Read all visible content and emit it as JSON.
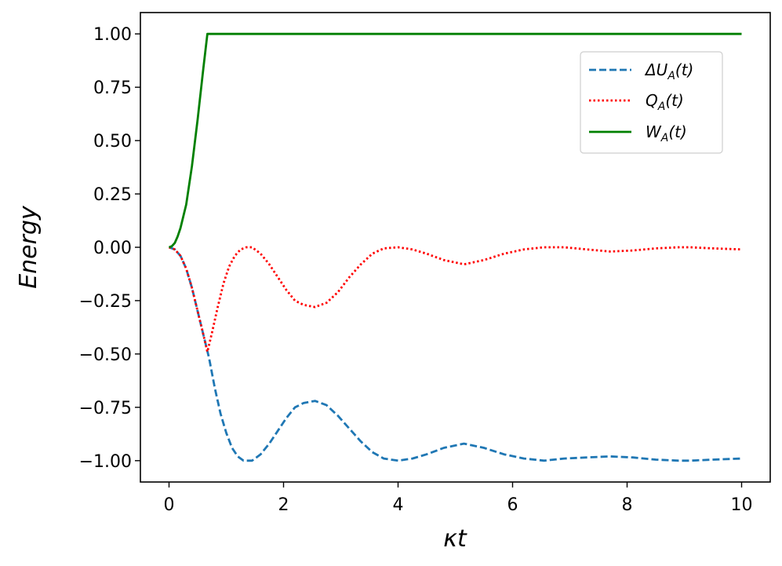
{
  "chart_data": {
    "type": "line",
    "xlabel": "κt",
    "ylabel": "Energy",
    "xlim": [
      -0.5,
      10.5
    ],
    "ylim": [
      -1.1,
      1.1
    ],
    "xticks": [
      0,
      2,
      4,
      6,
      8,
      10
    ],
    "xtick_labels": [
      "0",
      "2",
      "4",
      "6",
      "8",
      "10"
    ],
    "yticks": [
      1.0,
      0.75,
      0.5,
      0.25,
      0.0,
      -0.25,
      -0.5,
      -0.75,
      -1.0
    ],
    "ytick_labels": [
      "1.00",
      "0.75",
      "0.50",
      "0.25",
      "0.00",
      "−0.25",
      "−0.50",
      "−0.75",
      "−1.00"
    ],
    "grid": false,
    "legend_position": "top-right",
    "series": [
      {
        "name": "ΔU_A(t)",
        "legend_main": "ΔU",
        "legend_sub": "A",
        "legend_tail": "(t)",
        "color": "#1f77b4",
        "style": "dashed",
        "x": [
          0,
          0.1,
          0.2,
          0.3,
          0.4,
          0.5,
          0.6,
          0.7,
          0.8,
          0.9,
          1.0,
          1.1,
          1.2,
          1.3,
          1.45,
          1.6,
          1.75,
          1.9,
          2.05,
          2.2,
          2.35,
          2.55,
          2.75,
          2.95,
          3.15,
          3.35,
          3.55,
          3.75,
          4.0,
          4.25,
          4.5,
          4.8,
          5.15,
          5.5,
          5.85,
          6.2,
          6.55,
          6.9,
          7.3,
          7.7,
          8.1,
          8.5,
          8.9,
          9.1,
          9.5,
          10.0
        ],
        "y": [
          0,
          -0.01,
          -0.04,
          -0.1,
          -0.19,
          -0.3,
          -0.41,
          -0.52,
          -0.66,
          -0.78,
          -0.87,
          -0.94,
          -0.98,
          -1.0,
          -1.0,
          -0.97,
          -0.92,
          -0.86,
          -0.8,
          -0.75,
          -0.73,
          -0.72,
          -0.74,
          -0.79,
          -0.85,
          -0.91,
          -0.96,
          -0.99,
          -1.0,
          -0.99,
          -0.97,
          -0.94,
          -0.92,
          -0.94,
          -0.97,
          -0.99,
          -1.0,
          -0.99,
          -0.985,
          -0.98,
          -0.985,
          -0.995,
          -1.0,
          -1.0,
          -0.995,
          -0.99
        ]
      },
      {
        "name": "Q_A(t)",
        "legend_main": "Q",
        "legend_sub": "A",
        "legend_tail": "(t)",
        "color": "#ff0000",
        "style": "dotted",
        "x": [
          0,
          0.1,
          0.2,
          0.3,
          0.4,
          0.5,
          0.6,
          0.67,
          0.75,
          0.85,
          0.95,
          1.05,
          1.15,
          1.25,
          1.35,
          1.45,
          1.6,
          1.75,
          1.9,
          2.05,
          2.2,
          2.35,
          2.55,
          2.75,
          2.95,
          3.15,
          3.35,
          3.55,
          3.75,
          4.0,
          4.25,
          4.5,
          4.8,
          5.15,
          5.5,
          5.85,
          6.2,
          6.55,
          6.9,
          7.3,
          7.7,
          8.1,
          8.5,
          8.9,
          9.1,
          9.5,
          10.0
        ],
        "y": [
          0,
          -0.01,
          -0.04,
          -0.1,
          -0.19,
          -0.3,
          -0.41,
          -0.49,
          -0.4,
          -0.28,
          -0.17,
          -0.09,
          -0.04,
          -0.01,
          0.0,
          0.0,
          -0.03,
          -0.08,
          -0.14,
          -0.2,
          -0.25,
          -0.27,
          -0.28,
          -0.26,
          -0.21,
          -0.14,
          -0.08,
          -0.03,
          -0.005,
          0.0,
          -0.01,
          -0.03,
          -0.06,
          -0.08,
          -0.06,
          -0.03,
          -0.01,
          0.0,
          0.0,
          -0.01,
          -0.02,
          -0.015,
          -0.005,
          0.0,
          0.0,
          -0.005,
          -0.01
        ]
      },
      {
        "name": "W_A(t)",
        "legend_main": "W",
        "legend_sub": "A",
        "legend_tail": "(t)",
        "color": "#008000",
        "style": "solid",
        "x": [
          0,
          0.05,
          0.1,
          0.15,
          0.2,
          0.3,
          0.4,
          0.5,
          0.6,
          0.67,
          1.0,
          2.0,
          4.0,
          6.0,
          8.0,
          10.0
        ],
        "y": [
          0,
          0.005,
          0.02,
          0.05,
          0.09,
          0.2,
          0.38,
          0.6,
          0.84,
          1.0,
          1.0,
          1.0,
          1.0,
          1.0,
          1.0,
          1.0
        ]
      }
    ]
  }
}
